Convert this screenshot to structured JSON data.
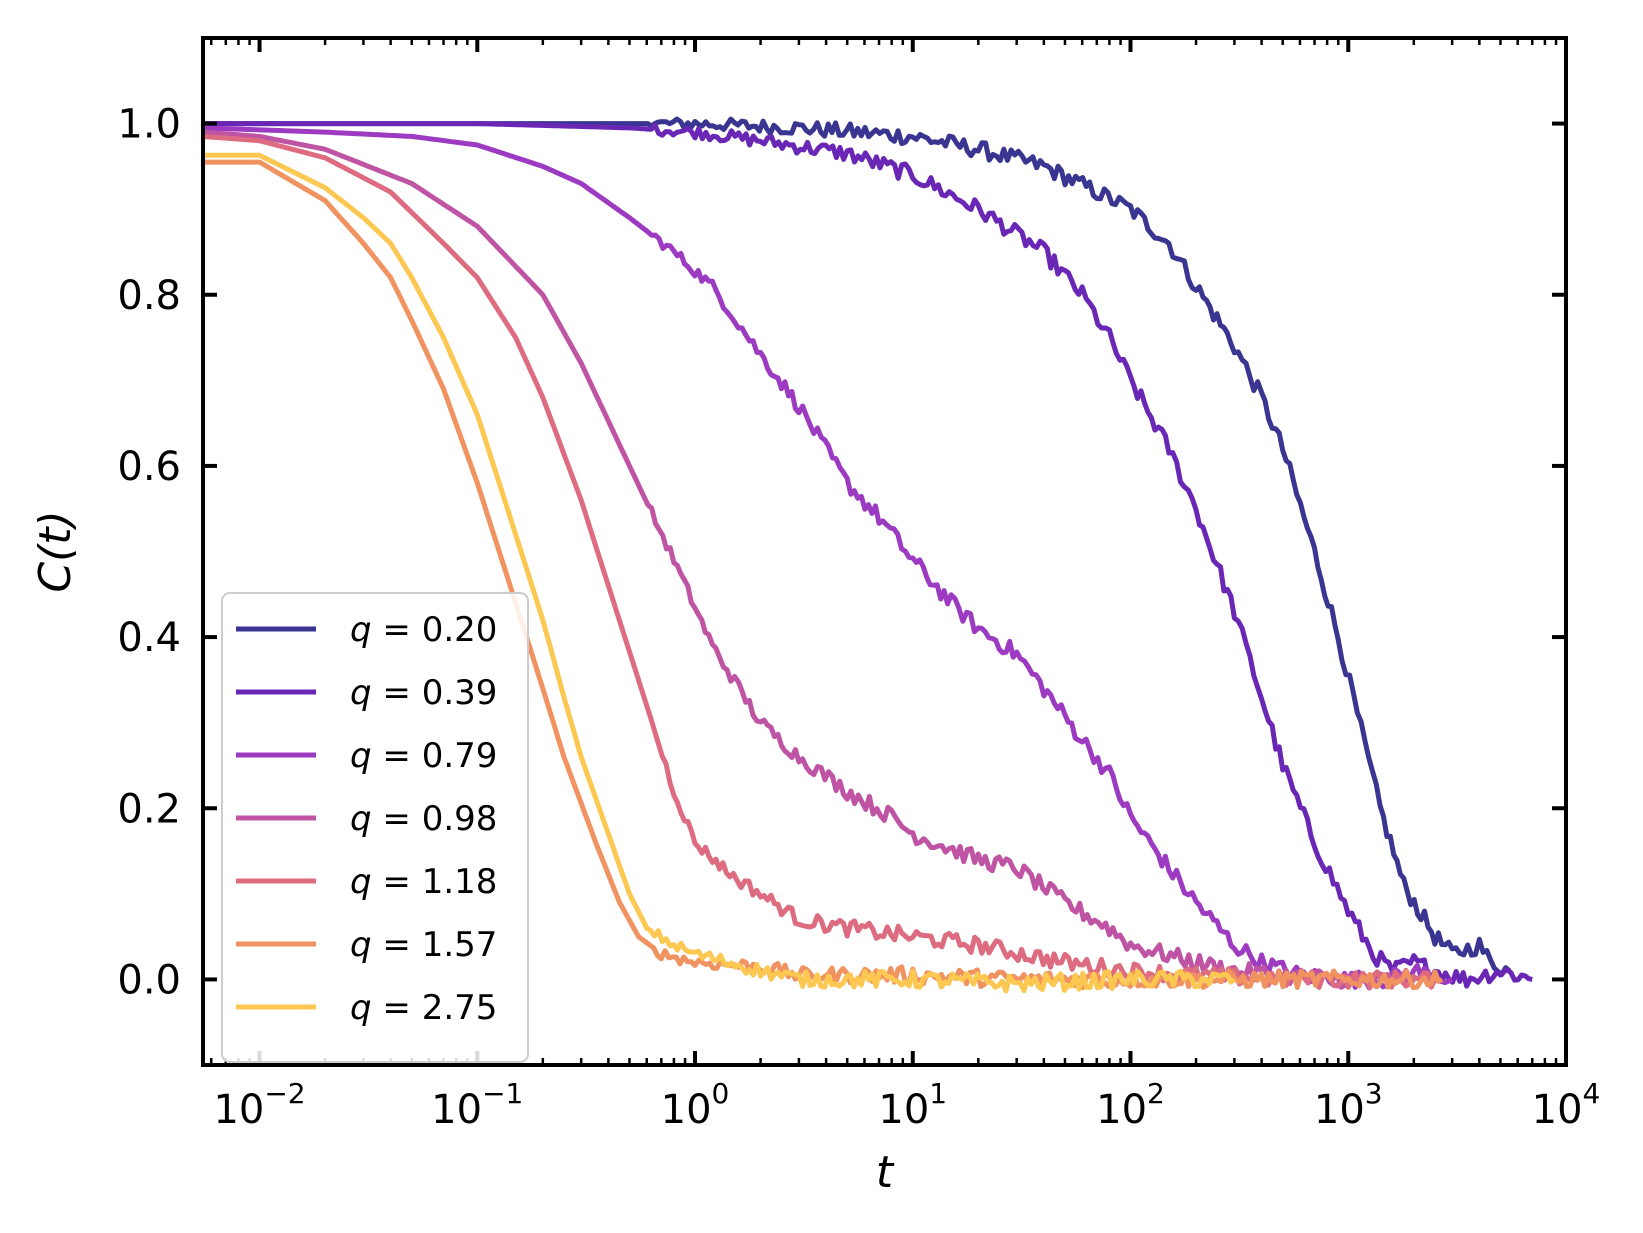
{
  "chart_data": {
    "type": "line",
    "title": "",
    "xlabel": "t",
    "ylabel": "C(t)",
    "xscale": "log",
    "xlim": [
      0.0055,
      10000
    ],
    "ylim": [
      -0.1,
      1.1
    ],
    "grid": false,
    "legend_position": "lower-left",
    "x_ticks": [
      {
        "value": 0.01,
        "base": "10",
        "exp": "−2"
      },
      {
        "value": 0.1,
        "base": "10",
        "exp": "−1"
      },
      {
        "value": 1,
        "base": "10",
        "exp": "0"
      },
      {
        "value": 10,
        "base": "10",
        "exp": "1"
      },
      {
        "value": 100,
        "base": "10",
        "exp": "2"
      },
      {
        "value": 1000,
        "base": "10",
        "exp": "3"
      },
      {
        "value": 10000,
        "base": "10",
        "exp": "4"
      }
    ],
    "y_ticks": [
      {
        "value": 0.0,
        "label": "0.0"
      },
      {
        "value": 0.2,
        "label": "0.2"
      },
      {
        "value": 0.4,
        "label": "0.4"
      },
      {
        "value": 0.6,
        "label": "0.6"
      },
      {
        "value": 0.8,
        "label": "0.8"
      },
      {
        "value": 1.0,
        "label": "1.0"
      }
    ],
    "series": [
      {
        "name": "q = 0.20",
        "q_label": "q",
        "q_value": "0.20",
        "color": "#3a3591",
        "points": [
          [
            0.0055,
            1.0
          ],
          [
            0.1,
            1.0
          ],
          [
            1,
            1.0
          ],
          [
            3,
            0.995
          ],
          [
            10,
            0.985
          ],
          [
            20,
            0.97
          ],
          [
            40,
            0.95
          ],
          [
            70,
            0.92
          ],
          [
            100,
            0.9
          ],
          [
            150,
            0.86
          ],
          [
            200,
            0.81
          ],
          [
            300,
            0.74
          ],
          [
            400,
            0.68
          ],
          [
            500,
            0.62
          ],
          [
            700,
            0.5
          ],
          [
            900,
            0.4
          ],
          [
            1100,
            0.31
          ],
          [
            1400,
            0.2
          ],
          [
            1800,
            0.11
          ],
          [
            2500,
            0.05
          ],
          [
            3000,
            0.03
          ],
          [
            4000,
            0.04
          ],
          [
            4500,
            0.02
          ],
          [
            5500,
            0.01
          ]
        ]
      },
      {
        "name": "q = 0.39",
        "q_label": "q",
        "q_value": "0.39",
        "color": "#6a26b4",
        "points": [
          [
            0.0055,
            1.0
          ],
          [
            0.1,
            1.0
          ],
          [
            0.5,
            0.995
          ],
          [
            1,
            0.99
          ],
          [
            2,
            0.98
          ],
          [
            5,
            0.965
          ],
          [
            10,
            0.94
          ],
          [
            20,
            0.9
          ],
          [
            40,
            0.85
          ],
          [
            60,
            0.8
          ],
          [
            80,
            0.75
          ],
          [
            100,
            0.7
          ],
          [
            150,
            0.62
          ],
          [
            200,
            0.55
          ],
          [
            300,
            0.43
          ],
          [
            400,
            0.33
          ],
          [
            500,
            0.25
          ],
          [
            700,
            0.16
          ],
          [
            1000,
            0.08
          ],
          [
            1300,
            0.03
          ],
          [
            1600,
            0.01
          ],
          [
            2000,
            0.02
          ],
          [
            2500,
            0.01
          ],
          [
            3500,
            0.0
          ],
          [
            5000,
            0.01
          ],
          [
            7000,
            0.0
          ]
        ]
      },
      {
        "name": "q = 0.79",
        "q_label": "q",
        "q_value": "0.79",
        "color": "#9c3ac2",
        "points": [
          [
            0.0055,
            0.995
          ],
          [
            0.02,
            0.99
          ],
          [
            0.05,
            0.985
          ],
          [
            0.1,
            0.975
          ],
          [
            0.2,
            0.95
          ],
          [
            0.3,
            0.93
          ],
          [
            0.5,
            0.89
          ],
          [
            0.8,
            0.85
          ],
          [
            1.2,
            0.81
          ],
          [
            2,
            0.73
          ],
          [
            3,
            0.67
          ],
          [
            5,
            0.58
          ],
          [
            7,
            0.54
          ],
          [
            10,
            0.49
          ],
          [
            15,
            0.44
          ],
          [
            20,
            0.41
          ],
          [
            30,
            0.38
          ],
          [
            40,
            0.34
          ],
          [
            60,
            0.28
          ],
          [
            80,
            0.24
          ],
          [
            100,
            0.19
          ],
          [
            150,
            0.13
          ],
          [
            200,
            0.09
          ],
          [
            300,
            0.04
          ],
          [
            400,
            0.02
          ],
          [
            600,
            0.005
          ],
          [
            1000,
            0.0
          ],
          [
            1500,
            0.0
          ],
          [
            2000,
            0.01
          ],
          [
            3000,
            0.0
          ]
        ]
      },
      {
        "name": "q = 0.98",
        "q_label": "q",
        "q_value": "0.98",
        "color": "#c054a4",
        "points": [
          [
            0.0055,
            0.99
          ],
          [
            0.01,
            0.985
          ],
          [
            0.02,
            0.97
          ],
          [
            0.05,
            0.93
          ],
          [
            0.1,
            0.88
          ],
          [
            0.2,
            0.8
          ],
          [
            0.3,
            0.72
          ],
          [
            0.5,
            0.6
          ],
          [
            0.8,
            0.49
          ],
          [
            1.2,
            0.39
          ],
          [
            2,
            0.3
          ],
          [
            3,
            0.26
          ],
          [
            5,
            0.22
          ],
          [
            8,
            0.19
          ],
          [
            10,
            0.17
          ],
          [
            20,
            0.14
          ],
          [
            30,
            0.13
          ],
          [
            50,
            0.09
          ],
          [
            80,
            0.06
          ],
          [
            100,
            0.04
          ],
          [
            200,
            0.02
          ],
          [
            300,
            0.01
          ],
          [
            500,
            0.005
          ],
          [
            1000,
            0.0
          ],
          [
            2000,
            0.0
          ]
        ]
      },
      {
        "name": "q = 1.18",
        "q_label": "q",
        "q_value": "1.18",
        "color": "#dd6c80",
        "points": [
          [
            0.0055,
            0.985
          ],
          [
            0.01,
            0.98
          ],
          [
            0.02,
            0.96
          ],
          [
            0.04,
            0.92
          ],
          [
            0.07,
            0.86
          ],
          [
            0.1,
            0.82
          ],
          [
            0.15,
            0.75
          ],
          [
            0.2,
            0.68
          ],
          [
            0.3,
            0.56
          ],
          [
            0.4,
            0.46
          ],
          [
            0.6,
            0.32
          ],
          [
            0.8,
            0.22
          ],
          [
            1,
            0.16
          ],
          [
            1.5,
            0.12
          ],
          [
            2,
            0.1
          ],
          [
            3,
            0.07
          ],
          [
            5,
            0.06
          ],
          [
            10,
            0.05
          ],
          [
            20,
            0.04
          ],
          [
            50,
            0.02
          ],
          [
            100,
            0.01
          ],
          [
            200,
            0.005
          ],
          [
            500,
            0.0
          ],
          [
            1000,
            0.0
          ],
          [
            2500,
            0.0
          ]
        ]
      },
      {
        "name": "q = 1.57",
        "q_label": "q",
        "q_value": "1.57",
        "color": "#f19360",
        "points": [
          [
            0.0055,
            0.955
          ],
          [
            0.01,
            0.955
          ],
          [
            0.02,
            0.91
          ],
          [
            0.03,
            0.86
          ],
          [
            0.04,
            0.82
          ],
          [
            0.05,
            0.77
          ],
          [
            0.07,
            0.69
          ],
          [
            0.1,
            0.58
          ],
          [
            0.15,
            0.44
          ],
          [
            0.2,
            0.34
          ],
          [
            0.25,
            0.26
          ],
          [
            0.35,
            0.16
          ],
          [
            0.45,
            0.09
          ],
          [
            0.55,
            0.05
          ],
          [
            0.7,
            0.03
          ],
          [
            1,
            0.02
          ],
          [
            2,
            0.015
          ],
          [
            3,
            0.005
          ],
          [
            10,
            0.005
          ],
          [
            30,
            0.0
          ],
          [
            100,
            0.0
          ],
          [
            1000,
            0.0
          ],
          [
            2700,
            0.0
          ]
        ]
      },
      {
        "name": "q = 2.75",
        "q_label": "q",
        "q_value": "2.75",
        "color": "#fcc852",
        "points": [
          [
            0.0055,
            0.963
          ],
          [
            0.01,
            0.963
          ],
          [
            0.02,
            0.925
          ],
          [
            0.03,
            0.89
          ],
          [
            0.04,
            0.86
          ],
          [
            0.05,
            0.82
          ],
          [
            0.07,
            0.75
          ],
          [
            0.1,
            0.66
          ],
          [
            0.15,
            0.52
          ],
          [
            0.2,
            0.42
          ],
          [
            0.25,
            0.33
          ],
          [
            0.3,
            0.26
          ],
          [
            0.4,
            0.17
          ],
          [
            0.5,
            0.1
          ],
          [
            0.6,
            0.06
          ],
          [
            0.8,
            0.04
          ],
          [
            1,
            0.03
          ],
          [
            2,
            0.01
          ],
          [
            3,
            0.0
          ],
          [
            10,
            0.0
          ],
          [
            30,
            -0.005
          ],
          [
            100,
            0.0
          ],
          [
            300,
            0.0
          ]
        ]
      }
    ]
  }
}
